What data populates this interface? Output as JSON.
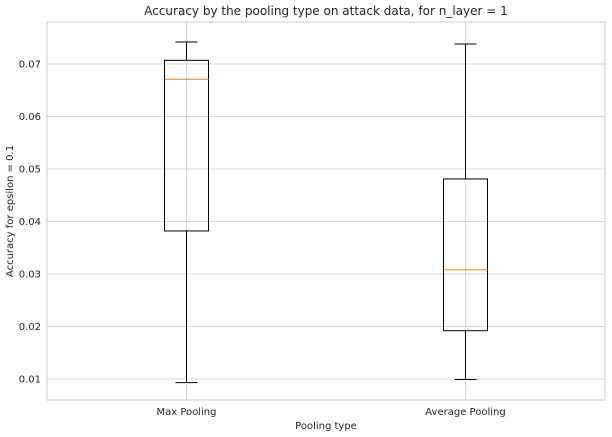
{
  "chart_data": {
    "type": "box",
    "title": "Accuracy by the pooling type on attack data, for n_layer = 1",
    "xlabel": "Pooling type",
    "ylabel": "Accuracy for epsilon = 0.1",
    "ylim": [
      0.006,
      0.078
    ],
    "yticks": [
      0.01,
      0.02,
      0.03,
      0.04,
      0.05,
      0.06,
      0.07
    ],
    "ytick_labels": [
      "0.01",
      "0.02",
      "0.03",
      "0.04",
      "0.05",
      "0.06",
      "0.07"
    ],
    "grid": true,
    "categories": [
      "Max Pooling",
      "Average Pooling"
    ],
    "boxes": [
      {
        "category": "Max Pooling",
        "whisker_low": 0.0093,
        "q1": 0.0382,
        "median": 0.0671,
        "q3": 0.0707,
        "whisker_high": 0.0742
      },
      {
        "category": "Average Pooling",
        "whisker_low": 0.0099,
        "q1": 0.0192,
        "median": 0.0308,
        "q3": 0.0481,
        "whisker_high": 0.0738
      }
    ],
    "colors": {
      "box": "#000000",
      "median": "#ff7f0e",
      "grid": "#cccccc",
      "spine": "#cccccc",
      "text": "#262626"
    }
  }
}
